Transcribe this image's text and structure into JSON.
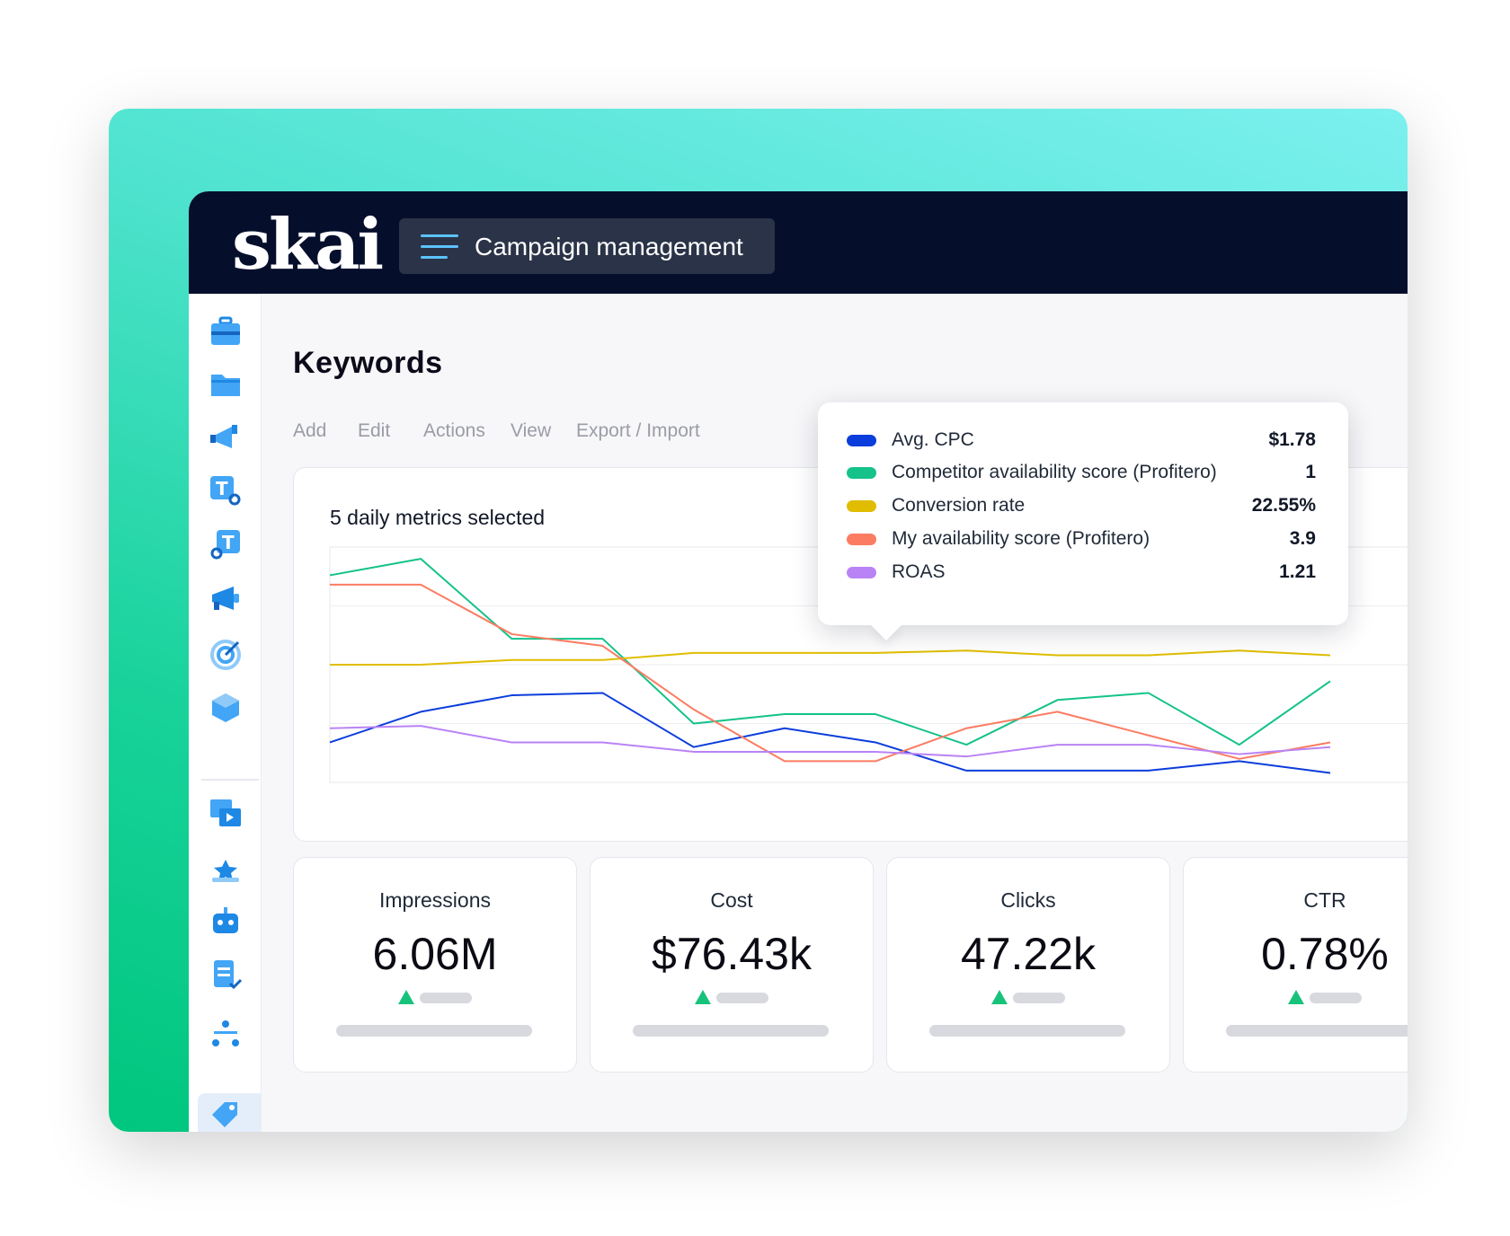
{
  "header": {
    "logo_text": "skai",
    "menu_label": "Campaign management"
  },
  "page": {
    "title": "Keywords",
    "actions": [
      "Add",
      "Edit",
      "Actions",
      "View",
      "Export / Import"
    ]
  },
  "sidebar": {
    "icons": [
      "briefcase-icon",
      "folder-icon",
      "campaign-megaphone-icon",
      "text-ad-key-icon",
      "text-search-icon",
      "megaphone-icon",
      "target-icon",
      "cube-icon",
      "media-gallery-icon",
      "star-badge-icon",
      "robot-icon",
      "checklist-icon",
      "hierarchy-icon",
      "tag-icon"
    ],
    "active": "tag-icon"
  },
  "chart": {
    "title": "5 daily metrics selected"
  },
  "chart_data": {
    "type": "line",
    "x": [
      1,
      2,
      3,
      4,
      5,
      6,
      7,
      8,
      9,
      10,
      11,
      12
    ],
    "series": [
      {
        "name": "Avg. CPC",
        "color": "#0b3ddc",
        "values": [
          17,
          30,
          37,
          38,
          15,
          23,
          17,
          5,
          5,
          5,
          9,
          4
        ]
      },
      {
        "name": "Competitor availability score (Profitero)",
        "color": "#14c28a",
        "values": [
          88,
          95,
          61,
          61,
          25,
          29,
          29,
          16,
          35,
          38,
          16,
          43
        ]
      },
      {
        "name": "Conversion rate",
        "color": "#e0bd00",
        "values": [
          50,
          50,
          52,
          52,
          55,
          55,
          55,
          56,
          54,
          54,
          56,
          54
        ]
      },
      {
        "name": "My availability score (Profitero)",
        "color": "#fb7c62",
        "values": [
          84,
          84,
          63,
          58,
          31,
          9,
          9,
          23,
          30,
          20,
          10,
          17
        ]
      },
      {
        "name": "ROAS",
        "color": "#b983f6",
        "values": [
          23,
          24,
          17,
          17,
          13,
          13,
          13,
          11,
          16,
          16,
          12,
          15
        ]
      }
    ],
    "ylim": [
      0,
      100
    ],
    "grid": true
  },
  "tooltip": {
    "rows": [
      {
        "label": "Avg. CPC",
        "value": "$1.78",
        "color": "#0b3ddc"
      },
      {
        "label": "Competitor availability score (Profitero)",
        "value": "1",
        "color": "#14c28a"
      },
      {
        "label": "Conversion rate",
        "value": "22.55%",
        "color": "#e0bd00"
      },
      {
        "label": "My availability score (Profitero)",
        "value": "3.9",
        "color": "#fb7c62"
      },
      {
        "label": "ROAS",
        "value": "1.21",
        "color": "#b983f6"
      }
    ]
  },
  "stats": [
    {
      "label": "Impressions",
      "value": "6.06M"
    },
    {
      "label": "Cost",
      "value": "$76.43k"
    },
    {
      "label": "Clicks",
      "value": "47.22k"
    },
    {
      "label": "CTR",
      "value": "0.78%"
    }
  ],
  "colors": {
    "topbar": "#050f2c",
    "accent": "#5bc3ff",
    "trend_up": "#17c37b"
  }
}
